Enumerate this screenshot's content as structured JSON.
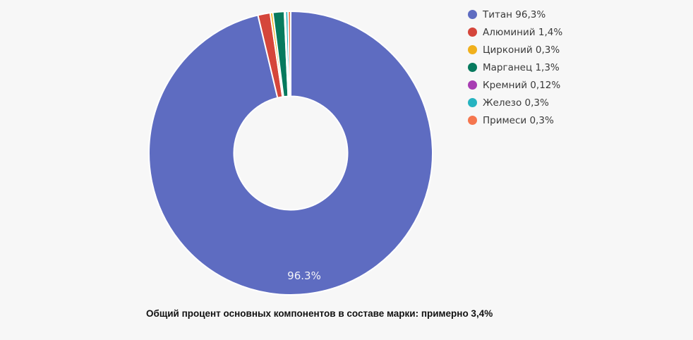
{
  "background": "#f7f7f7",
  "chart_data": {
    "type": "pie",
    "subtype": "donut",
    "start_angle_deg": 0,
    "direction": "clockwise",
    "inner_radius_ratio": 0.4,
    "legend_position": "right",
    "categories": [
      "Титан",
      "Алюминий",
      "Цирконий",
      "Марганец",
      "Кремний",
      "Железо",
      "Примеси"
    ],
    "values": [
      96.3,
      1.4,
      0.3,
      1.3,
      0.12,
      0.3,
      0.3
    ],
    "colors": [
      "#5e6cc1",
      "#d5463b",
      "#f0b01c",
      "#077a5e",
      "#a83db3",
      "#26b3c0",
      "#f5764e"
    ],
    "legend_labels": [
      "Титан 96,3%",
      "Алюминий 1,4%",
      "Цирконий 0,3%",
      "Марганец 1,3%",
      "Кремний 0,12%",
      "Железо 0,3%",
      "Примеси 0,3%"
    ],
    "slice_label": "96.3%",
    "separator_color": "#ffffff"
  },
  "caption": "Общий процент основных компонентов в составе марки: примерно 3,4%"
}
